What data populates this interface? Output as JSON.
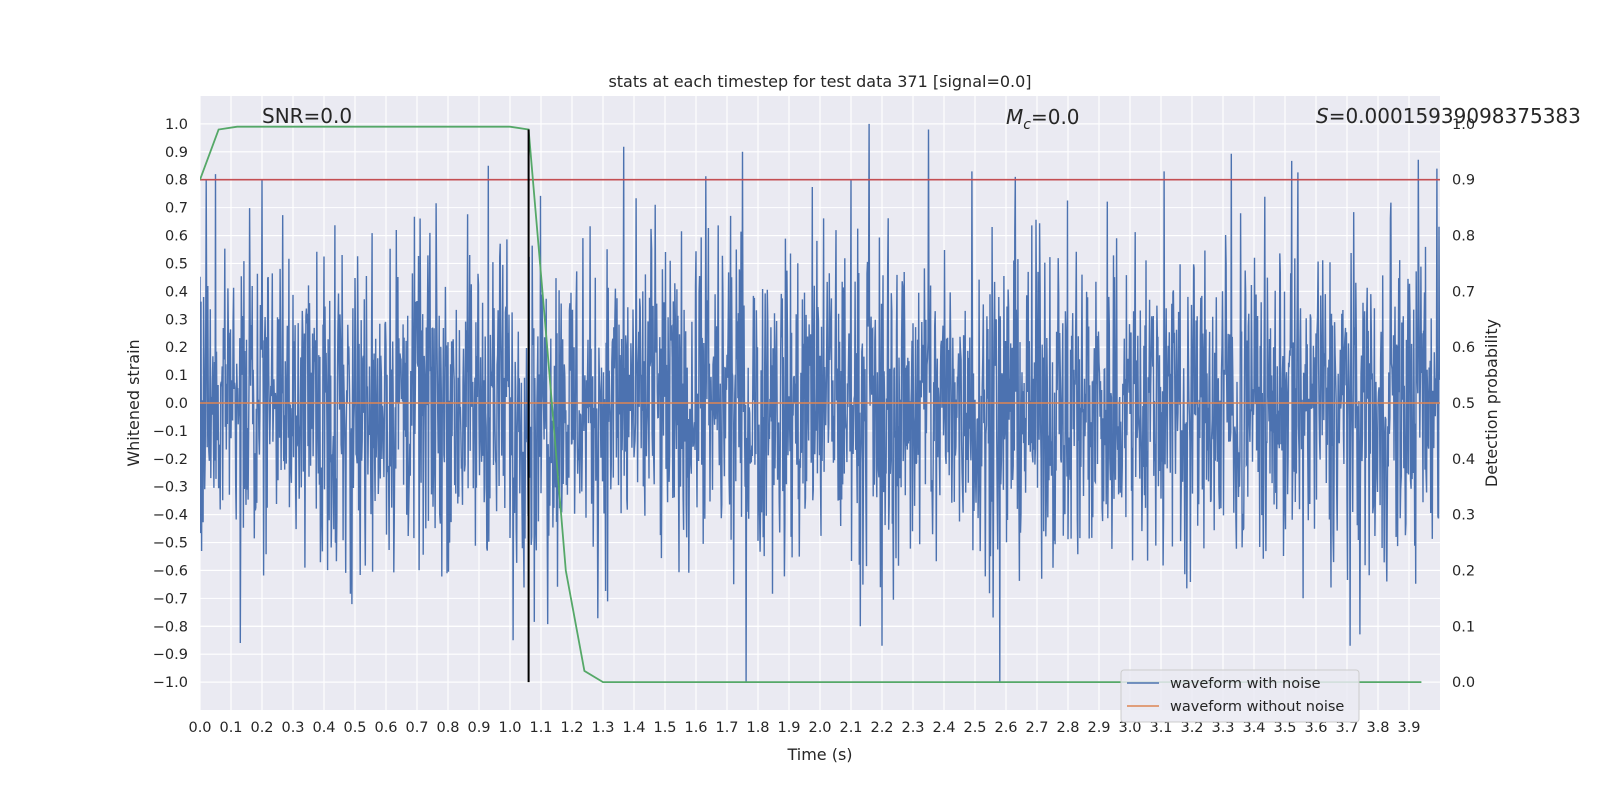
{
  "chart_data": {
    "type": "line",
    "title": "stats at each timestep for test data 371 [signal=0.0]",
    "xlabel": "Time (s)",
    "ylabel": "Whitened strain",
    "y2label": "Detection probability",
    "xlim": [
      0.0,
      4.0
    ],
    "ylim": [
      -1.1,
      1.1
    ],
    "y2lim": [
      -0.05,
      1.05
    ],
    "x_ticks": [
      "0.0",
      "0.1",
      "0.2",
      "0.3",
      "0.4",
      "0.5",
      "0.6",
      "0.7",
      "0.8",
      "0.9",
      "1.0",
      "1.1",
      "1.2",
      "1.3",
      "1.4",
      "1.5",
      "1.6",
      "1.7",
      "1.8",
      "1.9",
      "2.0",
      "2.1",
      "2.2",
      "2.3",
      "2.4",
      "2.5",
      "2.6",
      "2.7",
      "2.8",
      "2.9",
      "3.0",
      "3.1",
      "3.2",
      "3.3",
      "3.4",
      "3.5",
      "3.6",
      "3.7",
      "3.8",
      "3.9"
    ],
    "y_ticks": [
      "1.0",
      "0.9",
      "0.8",
      "0.7",
      "0.6",
      "0.5",
      "0.4",
      "0.3",
      "0.2",
      "0.1",
      "0.0",
      "−0.1",
      "−0.2",
      "−0.3",
      "−0.4",
      "−0.5",
      "−0.6",
      "−0.7",
      "−0.8",
      "−0.9",
      "−1.0"
    ],
    "y2_ticks": [
      "1.0",
      "0.9",
      "0.8",
      "0.7",
      "0.6",
      "0.5",
      "0.4",
      "0.3",
      "0.2",
      "0.1",
      "0.0"
    ],
    "annotations": {
      "snr": "SNR=0.0",
      "mc_symbol": "M",
      "mc_sub": "c",
      "mc_value": "=0.0",
      "s_symbol": "S",
      "s_value": "=0.00015939098375383"
    },
    "grid": true,
    "legend": {
      "position": "lower-right",
      "entries": [
        "waveform with noise",
        "waveform without noise"
      ]
    },
    "series": [
      {
        "name": "waveform with noise",
        "axis": "left",
        "color": "#4c72b0",
        "kind": "noise",
        "amplitude_range": [
          -1.0,
          1.0
        ],
        "peaks": [
          [
            0.02,
            0.8
          ],
          [
            0.05,
            0.82
          ],
          [
            0.2,
            0.8
          ],
          [
            0.93,
            0.85
          ],
          [
            1.75,
            0.9
          ],
          [
            2.1,
            0.8
          ],
          [
            2.35,
            0.98
          ],
          [
            2.49,
            0.83
          ],
          [
            2.58,
            0.83
          ],
          [
            2.63,
            0.81
          ],
          [
            3.11,
            0.83
          ],
          [
            3.99,
            0.84
          ],
          [
            0.13,
            -0.86
          ],
          [
            1.01,
            -0.85
          ],
          [
            2.2,
            -0.87
          ],
          [
            2.58,
            -1.0
          ],
          [
            3.71,
            -0.87
          ]
        ]
      },
      {
        "name": "waveform without noise",
        "axis": "left",
        "color": "#dd8452",
        "x": [
          0.0,
          4.0
        ],
        "y": [
          0.0,
          0.0
        ]
      },
      {
        "axis": "right",
        "color": "#55a868",
        "x": [
          0.0,
          0.06,
          0.12,
          0.18,
          1.0,
          1.06,
          1.12,
          1.18,
          1.24,
          1.3,
          3.94
        ],
        "y": [
          0.9,
          0.99,
          0.995,
          0.995,
          0.995,
          0.99,
          0.6,
          0.2,
          0.02,
          0.0,
          0.0
        ]
      }
    ],
    "threshold": {
      "axis": "right",
      "value": 0.9,
      "color": "#c44e52"
    },
    "marker_vline": {
      "x": 1.06,
      "ymin": -1.0,
      "ymax": 0.99,
      "color": "#000000"
    }
  }
}
